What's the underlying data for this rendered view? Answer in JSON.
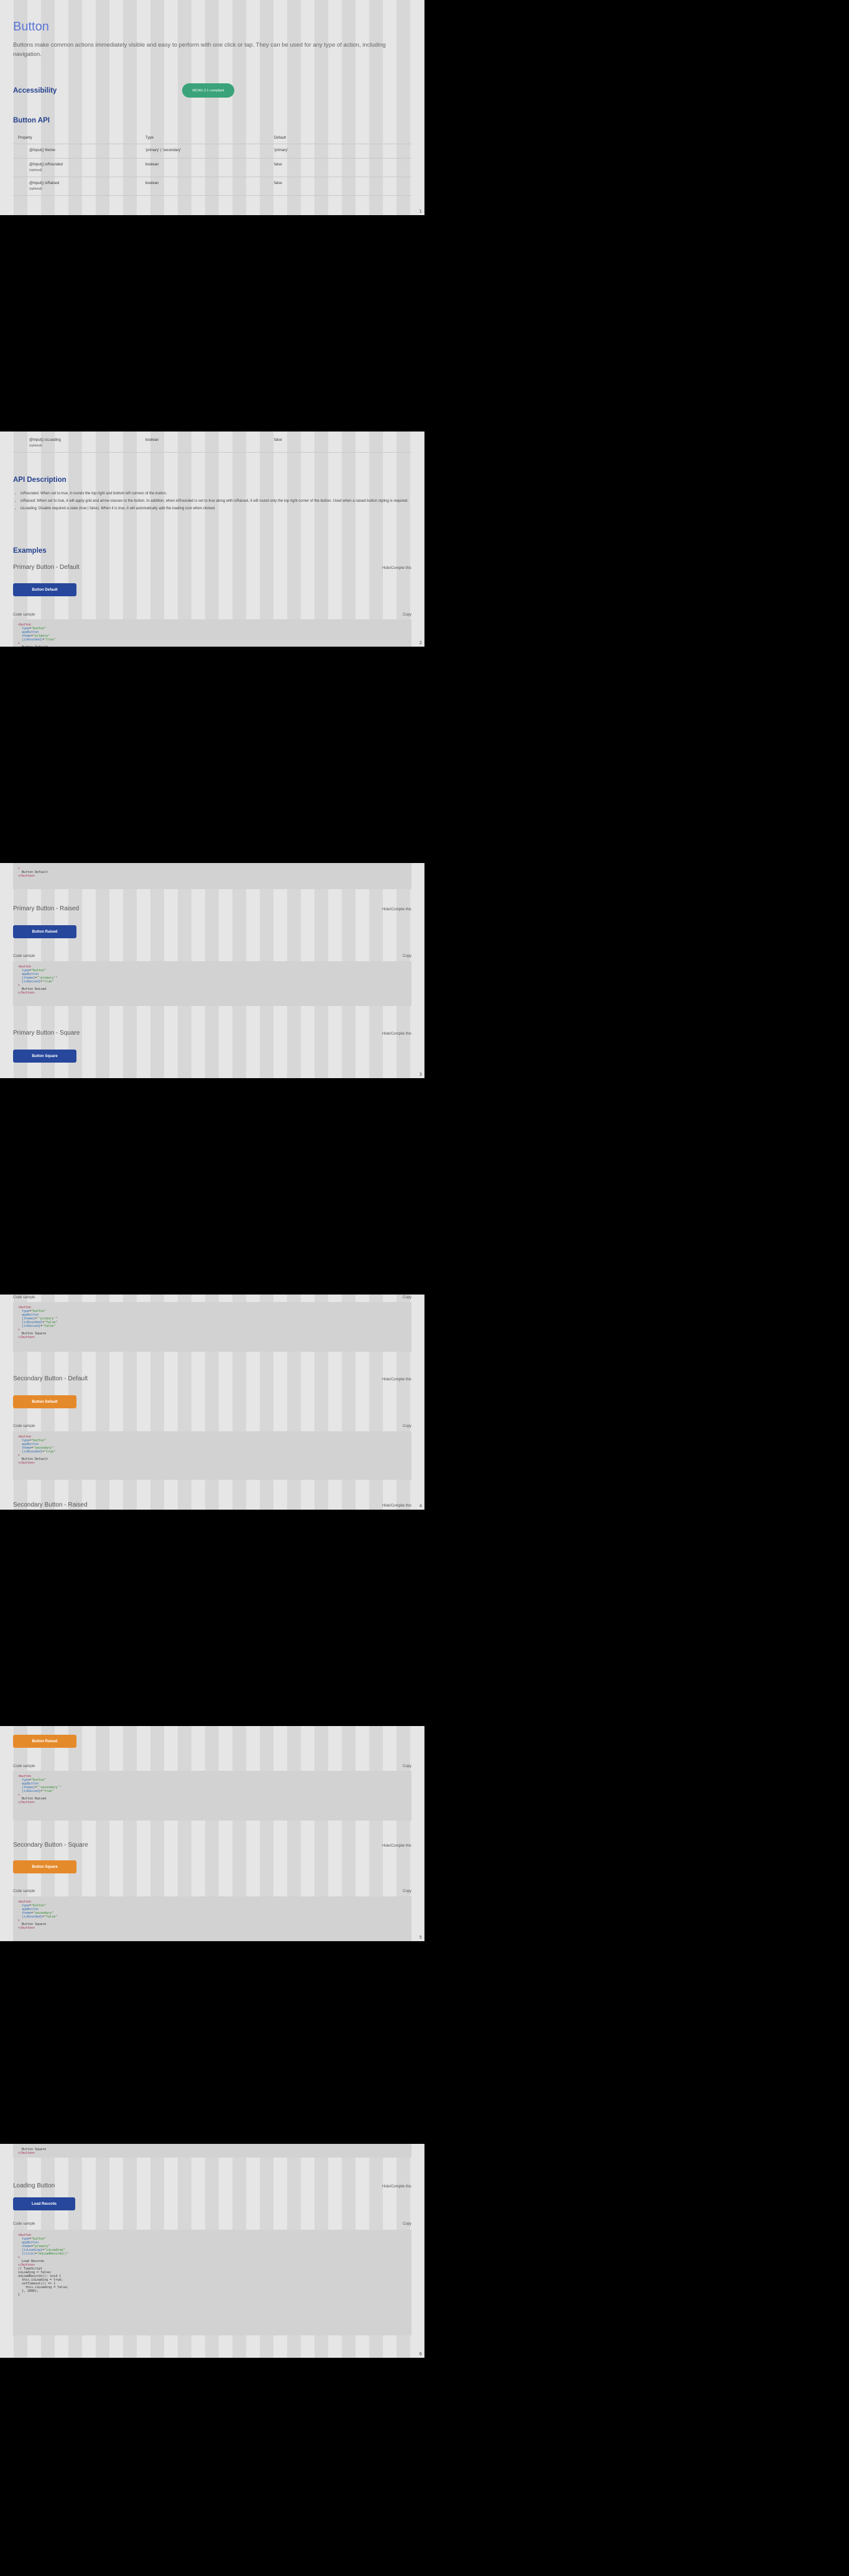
{
  "page": {
    "title": "Button",
    "lead": "Buttons make common actions immediately visible and easy to perform with one click or tap. They can be used for any type of action, including navigation.",
    "accessibility_heading": "Accessibility",
    "accessibility_badge": "WCAG 2.1 compliant",
    "api_heading": "Button API",
    "table_headers": [
      "Property",
      "Type",
      "Default"
    ],
    "table_rows": [
      {
        "prop": "@Input() theme",
        "type": "'primary' | 'secondary'",
        "def": "'primary'",
        "optional": ""
      },
      {
        "prop": "@Input() isRounded",
        "type": "boolean",
        "def": "false",
        "optional": "(optional)"
      },
      {
        "prop": "@Input() isRaised",
        "type": "boolean",
        "def": "false",
        "optional": "(optional)"
      },
      {
        "prop": "@Input() isLoading",
        "type": "boolean",
        "def": "false",
        "optional": "(optional)"
      }
    ],
    "api_desc_heading": "API Description",
    "api_desc_items": [
      "isRounded: When set to true, it rounds the top right and bottom left corners of the button.",
      "isRaised: When set to true, it will apply grid and arrow classes to the button. In addition, when isRounded is set to true along with isRaised, it will round only the top right corner of the button. Used when a raised button styling is required.",
      "isLoading: Disable required a state (true | false). When it is true, it will automatically add the loading icon when clicked."
    ],
    "examples_heading": "Examples",
    "show_compiled": "Hide/Compile this",
    "code_example": "Code sample",
    "copy": "Copy",
    "page_numbers": [
      "1",
      "2",
      "3",
      "4",
      "5",
      "6",
      "7"
    ]
  },
  "examples": [
    {
      "title": "Primary Button - Default",
      "button": "Button Default",
      "color": "blue"
    },
    {
      "title": "Primary Button - Raised",
      "button": "Button Raised",
      "color": "blue"
    },
    {
      "title": "Primary Button - Square",
      "button": "Button Square",
      "color": "blue"
    },
    {
      "title": "Secondary Button - Default",
      "button": "Button Default",
      "color": "orange"
    },
    {
      "title": "Secondary Button - Raised",
      "button": "Button Raised",
      "color": "orange"
    },
    {
      "title": "Secondary Button - Square",
      "button": "Button Square",
      "color": "orange"
    },
    {
      "title": "Loading Button",
      "button": "Load Records",
      "color": "blue"
    }
  ],
  "code": {
    "primary_default": [
      "<button",
      "  type=\"button\"",
      "  appButton",
      "  theme=\"primary\"",
      "  [isRounded]=\"true\"",
      ">",
      "  Button Default",
      "</button>"
    ],
    "primary_raised": [
      "<button",
      "  type=\"button\"",
      "  appButton",
      "  [theme]=\"'primary'\"",
      "  [isRaised]=\"true\"",
      ">",
      "  Button Raised",
      "</button>"
    ],
    "primary_square": [
      "<button",
      "  type=\"button\"",
      "  appButton",
      "  [theme]=\"'primary'\"",
      "  [isRounded]=\"false\"",
      "  [isRaised]=\"false\"",
      ">",
      "  Button Square",
      "</button>"
    ],
    "secondary_default": [
      "<button",
      "  type=\"button\"",
      "  appButton",
      "  theme=\"secondary\"",
      "  [isRounded]=\"true\"",
      ">",
      "  Button Default",
      "</button>"
    ],
    "secondary_raised": [
      "<button",
      "  type=\"button\"",
      "  appButton",
      "  [theme]=\"'secondary'\"",
      "  [isRaised]=\"true\"",
      ">",
      "  Button Raised",
      "</button>"
    ],
    "secondary_square": [
      "<button",
      "  type=\"button\"",
      "  appButton",
      "  theme=\"secondary\"",
      "  [isRounded]=\"false\"",
      ">",
      "  Button Square",
      "</button>"
    ],
    "loading": [
      "<button",
      "  type=\"button\"",
      "  appButton",
      "  theme=\"primary\"",
      "  [isLoading]=\"isLoading\"",
      "  (click)=\"onLoadRecords()\"",
      ">",
      "  Load Records",
      "</button>",
      "",
      "// TypeScript",
      "isLoading = false;",
      "",
      "onLoadRecords(): void {",
      "  this.isLoading = true;",
      "  setTimeout(() => {",
      "    this.isLoading = false;",
      "  }, 2000);",
      "}"
    ]
  },
  "colors": {
    "primary": "#26479b",
    "secondary": "#e58a2b",
    "accessibility": "#3aa37a",
    "heading": "#24418d",
    "title": "#5b74d6"
  }
}
